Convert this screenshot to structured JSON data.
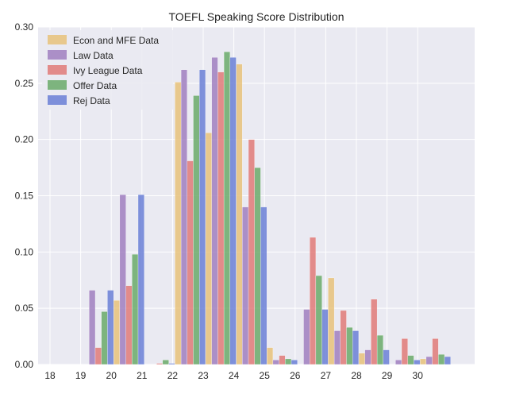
{
  "chart_data": {
    "type": "bar",
    "title": "TOEFL Speaking Score Distribution",
    "xlabel": "",
    "ylabel": "",
    "categories": [
      "18",
      "19",
      "20",
      "21",
      "22",
      "23",
      "24",
      "25",
      "26",
      "27",
      "28",
      "29",
      "30"
    ],
    "x_ticks": [
      "18",
      "19",
      "20",
      "21",
      "22",
      "23",
      "24",
      "25",
      "26",
      "27",
      "28",
      "29",
      "30"
    ],
    "y_ticks": [
      "0.00",
      "0.05",
      "0.10",
      "0.15",
      "0.20",
      "0.25",
      "0.30"
    ],
    "ylim": [
      0,
      0.3
    ],
    "grid": true,
    "legend_position": "top-left",
    "series": [
      {
        "name": "Econ and MFE Data",
        "color": "#e8c27a",
        "values": [
          0,
          0,
          0.057,
          0,
          0.251,
          0.206,
          0.267,
          0.015,
          0,
          0.077,
          0.01,
          0,
          0.005
        ]
      },
      {
        "name": "Law Data",
        "color": "#a07fbf",
        "values": [
          0,
          0.066,
          0.151,
          0,
          0.262,
          0.273,
          0.14,
          0.004,
          0.049,
          0.03,
          0.013,
          0.004,
          0.007
        ]
      },
      {
        "name": "Ivy League Data",
        "color": "#e07a78",
        "values": [
          0,
          0.015,
          0.07,
          0.001,
          0.181,
          0.26,
          0.2,
          0.008,
          0.113,
          0.048,
          0.058,
          0.023,
          0.023
        ]
      },
      {
        "name": "Offer Data",
        "color": "#6aaa6a",
        "values": [
          0,
          0.047,
          0.098,
          0.004,
          0.239,
          0.278,
          0.175,
          0.005,
          0.079,
          0.033,
          0.026,
          0.008,
          0.009
        ]
      },
      {
        "name": "Rej Data",
        "color": "#6a7fd6",
        "values": [
          0,
          0.066,
          0.151,
          0.001,
          0.262,
          0.273,
          0.14,
          0.004,
          0.049,
          0.03,
          0.013,
          0.004,
          0.007
        ]
      }
    ]
  }
}
